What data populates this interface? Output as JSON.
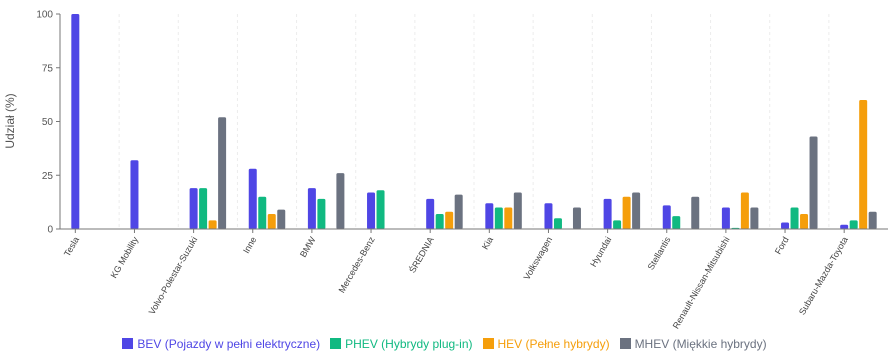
{
  "chart_data": {
    "type": "bar",
    "ylabel": "Udział (%)",
    "xlabel": "",
    "ylim": [
      0,
      100
    ],
    "yticks": [
      0,
      25,
      50,
      75,
      100
    ],
    "grid": "vertical",
    "legend_position": "bottom",
    "categories": [
      "Tesla",
      "KG Mobility",
      "Volvo-Polestar-Suzuki",
      "Inne",
      "BMW",
      "Mercedes-Benz",
      "ŚREDNIA",
      "Kia",
      "Volkswagen",
      "Hyundai",
      "Stellantis",
      "Renault-Nissan-Mitsubishi",
      "Ford",
      "Subaru-Mazda-Toyota"
    ],
    "series": [
      {
        "name": "BEV (Pojazdy w pełni elektryczne)",
        "color": "#4f46e5",
        "values": [
          100,
          32,
          19,
          28,
          19,
          17,
          14,
          12,
          12,
          14,
          11,
          10,
          3,
          2
        ]
      },
      {
        "name": "PHEV (Hybrydy plug-in)",
        "color": "#10b981",
        "values": [
          0,
          0,
          19,
          15,
          14,
          18,
          7,
          10,
          5,
          4,
          6,
          0.5,
          10,
          4
        ]
      },
      {
        "name": "HEV (Pełne hybrydy)",
        "color": "#f59e0b",
        "values": [
          0,
          0,
          4,
          7,
          0,
          0,
          8,
          10,
          0,
          15,
          0,
          17,
          7,
          60
        ]
      },
      {
        "name": "MHEV (Miękkie hybrydy)",
        "color": "#6b7280",
        "values": [
          0,
          0,
          52,
          9,
          26,
          0,
          16,
          17,
          10,
          17,
          15,
          10,
          43,
          8
        ]
      }
    ]
  }
}
